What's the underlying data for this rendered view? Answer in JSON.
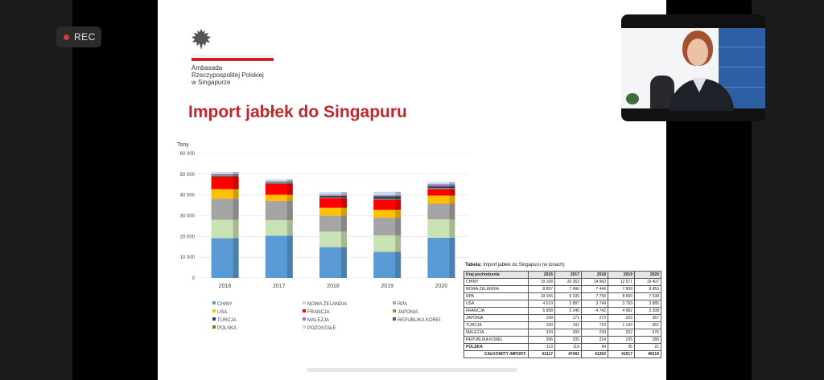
{
  "recording": {
    "label": "REC"
  },
  "slide": {
    "embassy_lines": [
      "Ambasada",
      "Rzeczypospolitej Polskiej",
      "w Singapurze"
    ],
    "title": "Import jabłek do Singapuru"
  },
  "chart_data": {
    "type": "bar",
    "stacked": true,
    "ylabel": "Tony",
    "ylim": [
      0,
      60000
    ],
    "yticks": [
      "0",
      "10 000",
      "20 000",
      "30 000",
      "40 000",
      "50 000",
      "60 000"
    ],
    "categories": [
      "2016",
      "2017",
      "2018",
      "2019",
      "2020"
    ],
    "legend_position": "bottom",
    "grid": true,
    "series": [
      {
        "name": "CHINY",
        "color": "#5b9bd5",
        "values": [
          19168,
          20363,
          14860,
          12571,
          19407
        ]
      },
      {
        "name": "NOWA ZELANDIA",
        "color": "#c9e2b3",
        "values": [
          8857,
          7496,
          7446,
          7909,
          8853
        ]
      },
      {
        "name": "RPA",
        "color": "#a5a5a5",
        "values": [
          10166,
          9335,
          7756,
          8560,
          7538
        ]
      },
      {
        "name": "USA",
        "color": "#ffc000",
        "values": [
          4619,
          2887,
          3749,
          3793,
          3885
        ]
      },
      {
        "name": "FRANCJA",
        "color": "#ff0000",
        "values": [
          5958,
          5240,
          4742,
          4982,
          3208
        ]
      },
      {
        "name": "JAPONIA",
        "color": "#70ad47",
        "values": [
          199,
          171,
          272,
          323,
          357
        ]
      },
      {
        "name": "TURCJA",
        "color": "#264478",
        "values": [
          190,
          191,
          723,
          1143,
          951
        ]
      },
      {
        "name": "MALEZJA",
        "color": "#cc66cc",
        "values": [
          324,
          289,
          230,
          252,
          576
        ]
      },
      {
        "name": "REPUBLIKA KOREI",
        "color": "#595959",
        "values": [
          396,
          335,
          224,
          235,
          289
        ]
      },
      {
        "name": "POLSKA",
        "color": "#9c6a00",
        "values": [
          113,
          119,
          94,
          35,
          21
        ]
      },
      {
        "name": "POZOSTAŁE",
        "color": "#c5dcef",
        "values": [
          1127,
          1066,
          1256,
          1714,
          1134
        ]
      }
    ]
  },
  "table": {
    "title_bold": "Tabela:",
    "title_rest": " Import jabłek do Singapuru (w tonach)",
    "headers": [
      "Kraj pochodzenia",
      "2016",
      "2017",
      "2018",
      "2019",
      "2020"
    ],
    "rows": [
      [
        "CHINY",
        "19 168",
        "20 363",
        "14 860",
        "12 571",
        "19 407"
      ],
      [
        "NOWA ZELANDIA",
        "8 857",
        "7 496",
        "7 446",
        "7 909",
        "8 853"
      ],
      [
        "RPA",
        "10 166",
        "9 335",
        "7 756",
        "8 560",
        "7 538"
      ],
      [
        "USA",
        "4 619",
        "2 887",
        "3 749",
        "3 793",
        "3 885"
      ],
      [
        "FRANCJA",
        "5 958",
        "5 240",
        "4 742",
        "4 982",
        "3 208"
      ],
      [
        "JAPONIA",
        "199",
        "171",
        "272",
        "323",
        "357"
      ],
      [
        "TURCJA",
        "190",
        "191",
        "723",
        "1 143",
        "951"
      ],
      [
        "MALEZJA",
        "324",
        "289",
        "230",
        "252",
        "576"
      ],
      [
        "REPUBLIKA KOREI",
        "396",
        "335",
        "224",
        "235",
        "289"
      ],
      [
        "POLSKA",
        "113",
        "119",
        "94",
        "35",
        "21"
      ]
    ],
    "total": [
      "CAŁKOWITY IMPORT:",
      "51117",
      "47492",
      "41352",
      "41517",
      "46219"
    ]
  }
}
